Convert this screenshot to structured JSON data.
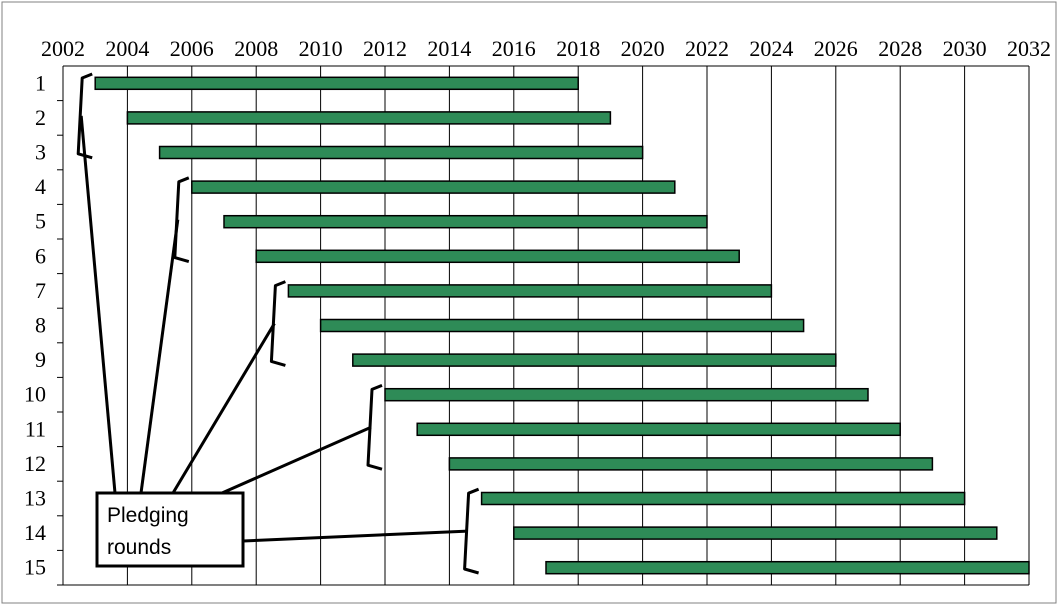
{
  "chart_data": {
    "type": "gantt",
    "x_ticks": [
      "2002",
      "2004",
      "2006",
      "2008",
      "2010",
      "2012",
      "2014",
      "2016",
      "2018",
      "2020",
      "2022",
      "2024",
      "2026",
      "2028",
      "2030",
      "2032"
    ],
    "xlim": [
      2002,
      2032
    ],
    "grid": "vertical",
    "categories": [
      "1",
      "2",
      "3",
      "4",
      "5",
      "6",
      "7",
      "8",
      "9",
      "10",
      "11",
      "12",
      "13",
      "14",
      "15"
    ],
    "bars": [
      {
        "label": "1",
        "start": 2003,
        "end": 2018
      },
      {
        "label": "2",
        "start": 2004,
        "end": 2019
      },
      {
        "label": "3",
        "start": 2005,
        "end": 2020
      },
      {
        "label": "4",
        "start": 2006,
        "end": 2021
      },
      {
        "label": "5",
        "start": 2007,
        "end": 2022
      },
      {
        "label": "6",
        "start": 2008,
        "end": 2023
      },
      {
        "label": "7",
        "start": 2009,
        "end": 2024
      },
      {
        "label": "8",
        "start": 2010,
        "end": 2025
      },
      {
        "label": "9",
        "start": 2011,
        "end": 2026
      },
      {
        "label": "10",
        "start": 2012,
        "end": 2027
      },
      {
        "label": "11",
        "start": 2013,
        "end": 2028
      },
      {
        "label": "12",
        "start": 2014,
        "end": 2029
      },
      {
        "label": "13",
        "start": 2015,
        "end": 2030
      },
      {
        "label": "14",
        "start": 2016,
        "end": 2031
      },
      {
        "label": "15",
        "start": 2017,
        "end": 2032
      }
    ],
    "bar_color": "#2e8b57",
    "bar_outline": "#000000",
    "annotation": {
      "text_line1": "Pledging",
      "text_line2": "rounds",
      "groups": [
        [
          1,
          3
        ],
        [
          4,
          6
        ],
        [
          7,
          9
        ],
        [
          10,
          12
        ],
        [
          13,
          15
        ]
      ]
    }
  }
}
